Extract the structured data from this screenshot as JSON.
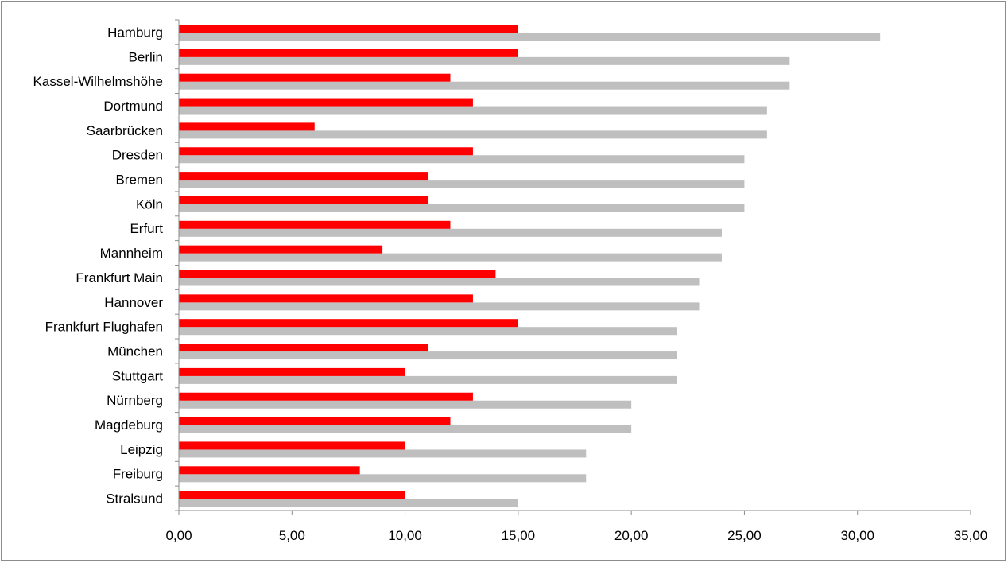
{
  "chart_data": {
    "type": "bar",
    "orientation": "horizontal",
    "categories": [
      "Hamburg",
      "Berlin",
      "Kassel-Wilhelmshöhe",
      "Dortmund",
      "Saarbrücken",
      "Dresden",
      "Bremen",
      "Köln",
      "Erfurt",
      "Mannheim",
      "Frankfurt Main",
      "Hannover",
      "Frankfurt Flughafen",
      "München",
      "Stuttgart",
      "Nürnberg",
      "Magdeburg",
      "Leipzig",
      "Freiburg",
      "Stralsund"
    ],
    "series": [
      {
        "color": "#ff0000",
        "values": [
          15,
          15,
          12,
          13,
          6,
          13,
          11,
          11,
          12,
          9,
          14,
          13,
          15,
          11,
          10,
          13,
          12,
          10,
          8,
          10
        ]
      },
      {
        "color": "#bfbfbf",
        "values": [
          31,
          27,
          27,
          26,
          26,
          25,
          25,
          25,
          24,
          24,
          23,
          23,
          22,
          22,
          22,
          20,
          20,
          18,
          18,
          15
        ]
      }
    ],
    "xlim": [
      0,
      35
    ],
    "xticks": [
      0,
      5,
      10,
      15,
      20,
      25,
      30,
      35
    ],
    "xtick_labels": [
      "0,00",
      "5,00",
      "10,00",
      "15,00",
      "20,00",
      "25,00",
      "30,00",
      "35,00"
    ],
    "title": "",
    "xlabel": "",
    "ylabel": "",
    "grid": false,
    "legend": "none"
  }
}
